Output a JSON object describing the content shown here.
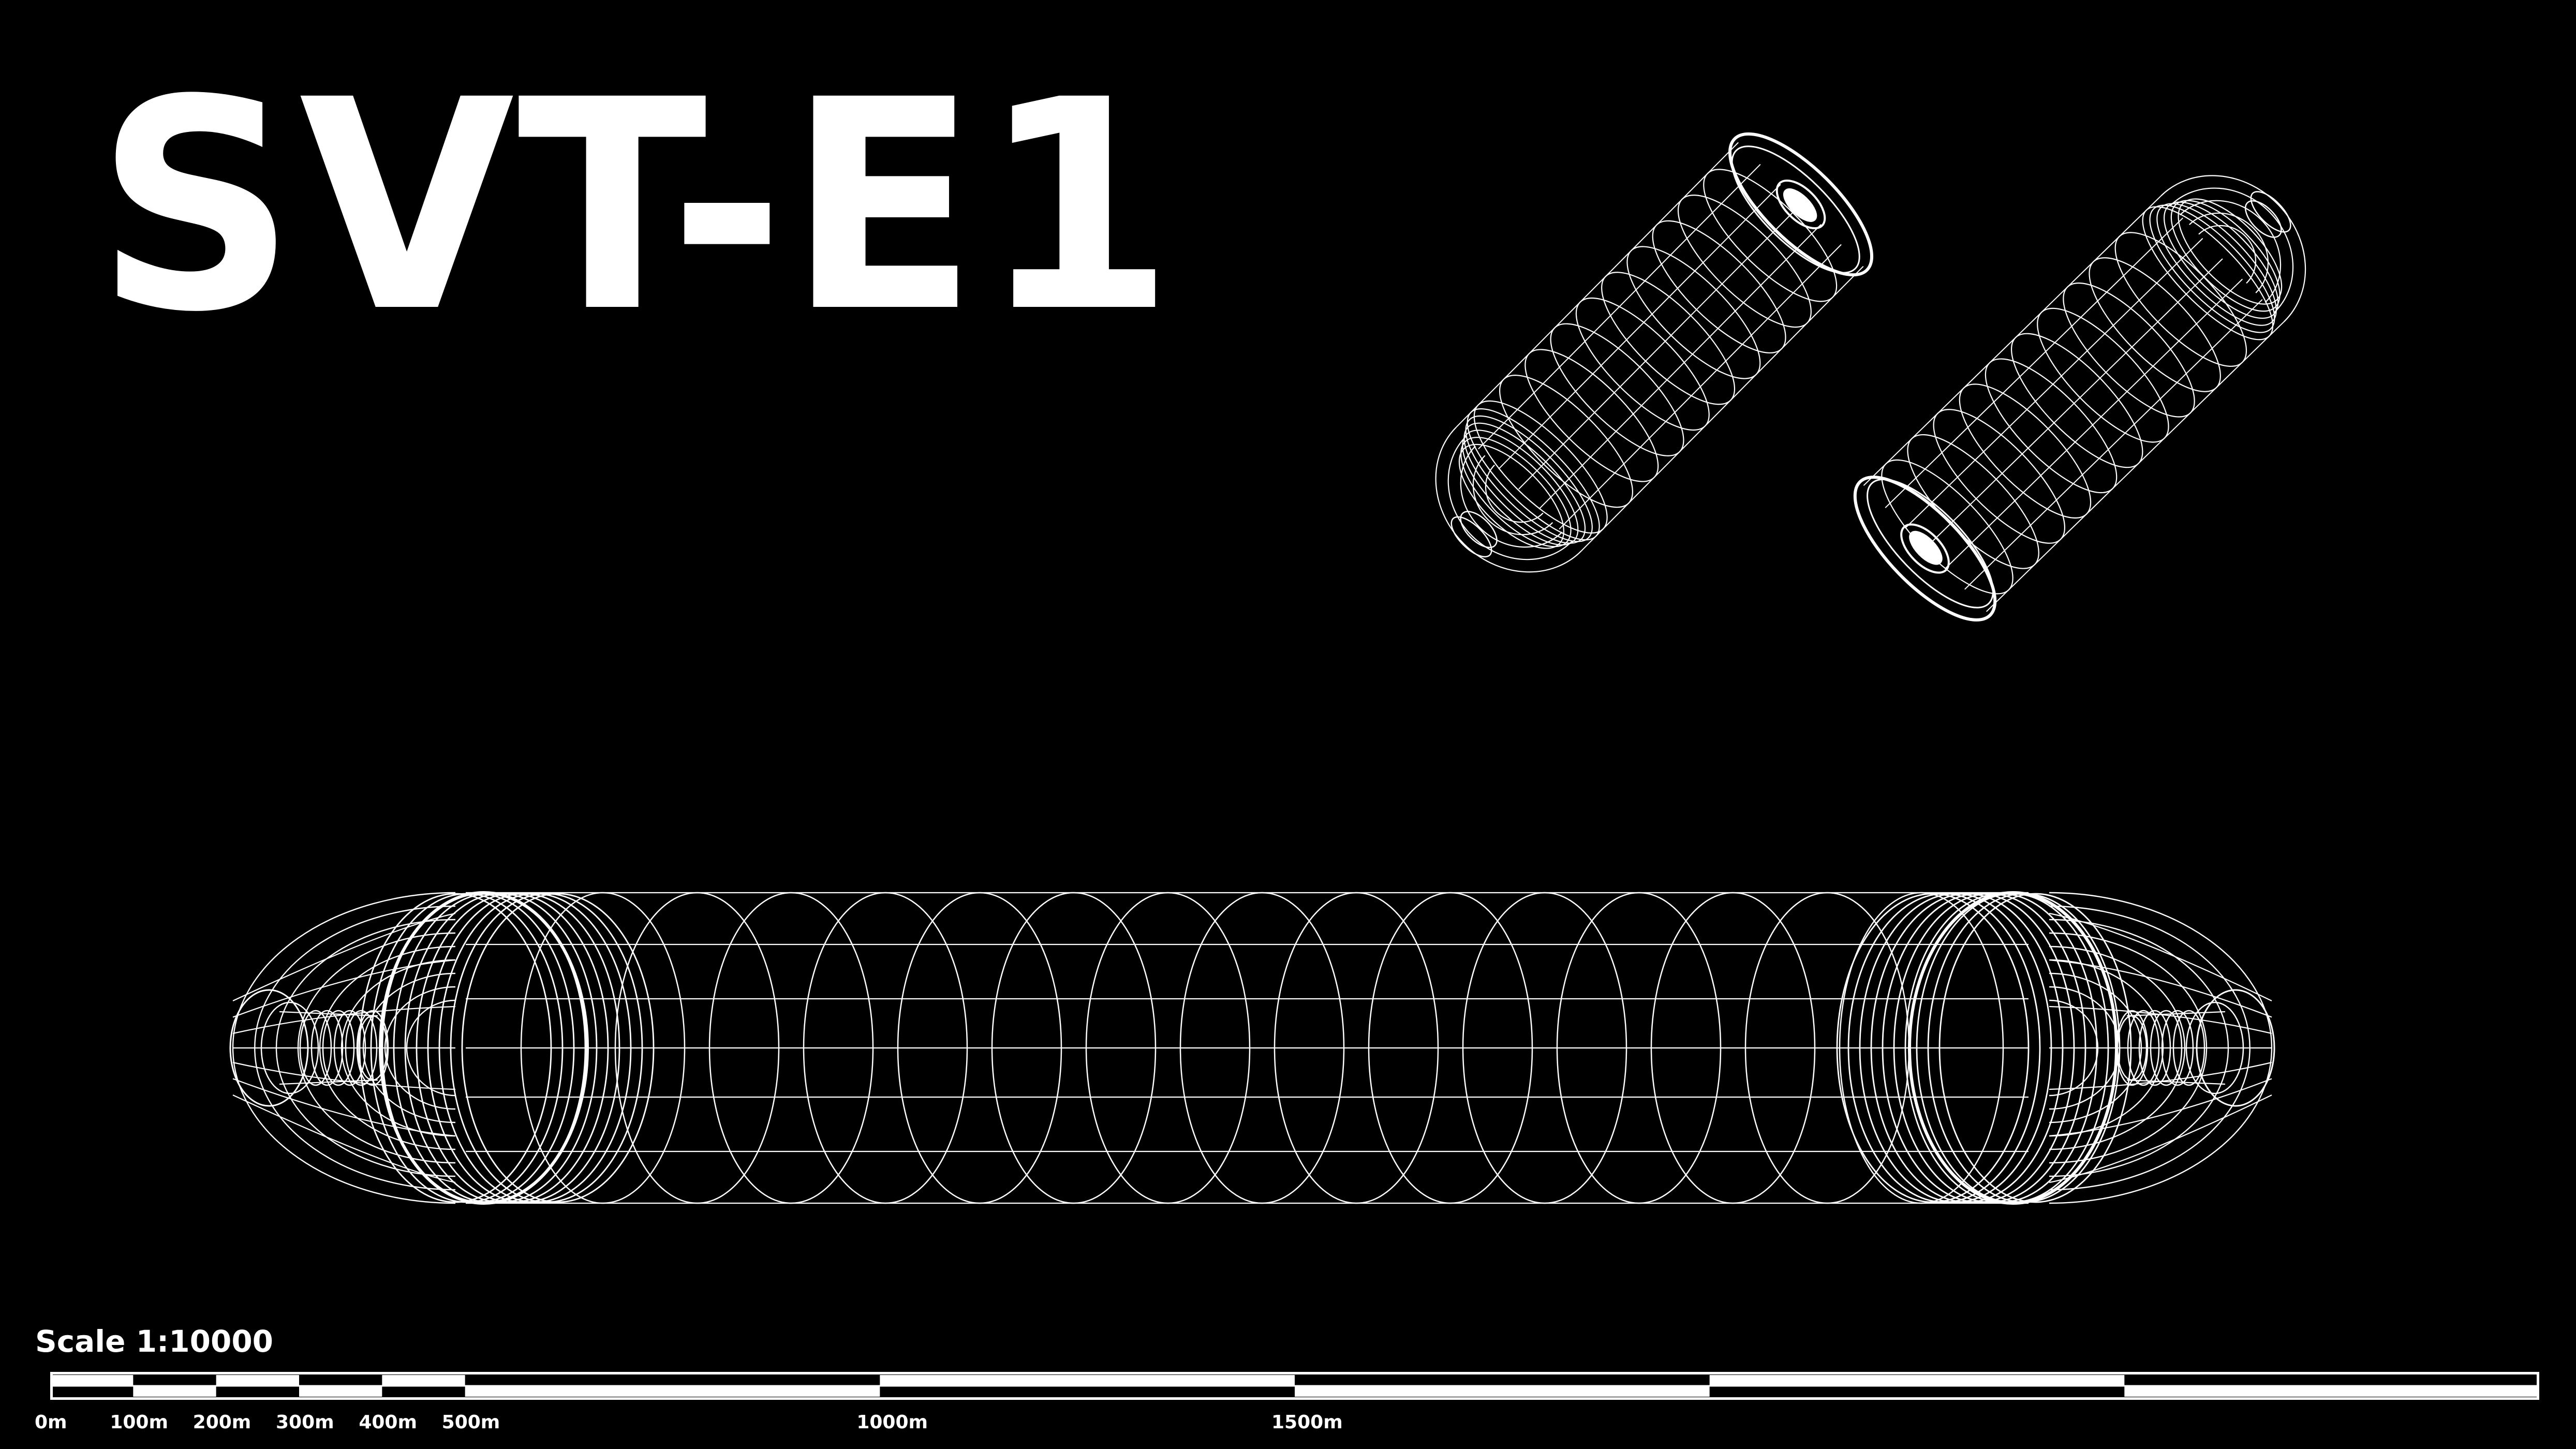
{
  "title": "SVT-E1",
  "scale": {
    "label": "Scale 1:10000",
    "ticks": [
      {
        "value": 0,
        "label": "0m"
      },
      {
        "value": 100,
        "label": "100m"
      },
      {
        "value": 200,
        "label": "200m"
      },
      {
        "value": 300,
        "label": "300m"
      },
      {
        "value": 400,
        "label": "400m"
      },
      {
        "value": 500,
        "label": "500m"
      },
      {
        "value": 1000,
        "label": "1000m"
      },
      {
        "value": 1500,
        "label": "1500m"
      }
    ],
    "bar_max_m": 3000
  },
  "colors": {
    "background": "#000000",
    "line": "#ffffff"
  }
}
